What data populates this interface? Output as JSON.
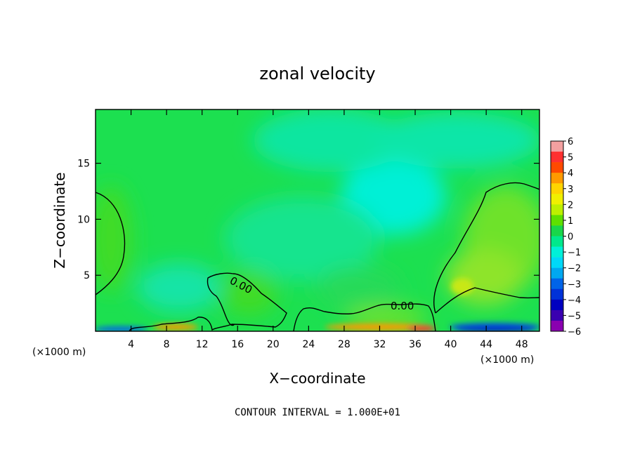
{
  "chart_data": {
    "type": "heatmap",
    "title": "zonal velocity",
    "xlabel": "X−coordinate",
    "ylabel": "Z−coordinate",
    "x_unit": "(×1000 m)",
    "xlim": [
      0,
      50
    ],
    "ylim": [
      0,
      19.8
    ],
    "x_ticks": [
      4,
      8,
      12,
      16,
      20,
      24,
      28,
      32,
      36,
      40,
      44,
      48
    ],
    "y_ticks": [
      5,
      10,
      15
    ],
    "colorbar": {
      "ticks": [
        "6",
        "5",
        "4",
        "3",
        "2",
        "1",
        "0",
        "−1",
        "−2",
        "−3",
        "−4",
        "−5",
        "−6"
      ],
      "colors": [
        "#f3a0a0",
        "#ff3030",
        "#ff4a00",
        "#ff9a00",
        "#ffd400",
        "#f0f000",
        "#bdf000",
        "#5ee000",
        "#19d64a",
        "#00e88c",
        "#00f0d8",
        "#00d8f8",
        "#00a8f0",
        "#0064e8",
        "#0032d8",
        "#0000c0",
        "#3a00b0",
        "#8a00b0"
      ]
    },
    "contour_labels": [
      "0.00",
      "0.00"
    ],
    "contour_interval_text": "CONTOUR INTERVAL = 1.000E+01"
  }
}
